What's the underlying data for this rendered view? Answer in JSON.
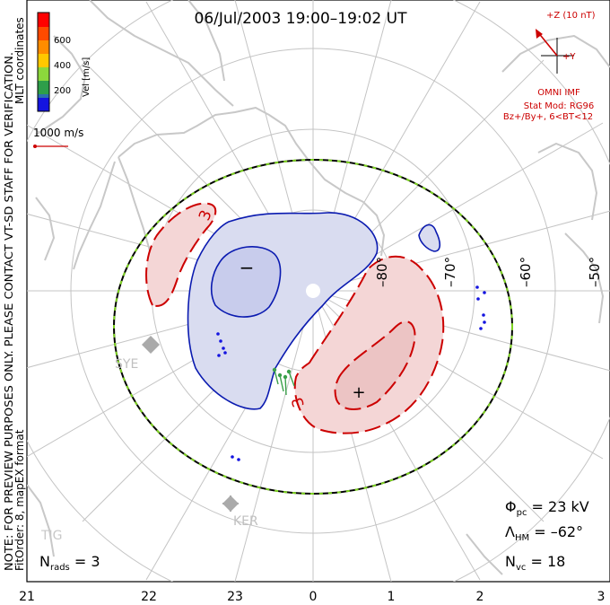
{
  "title": "06/Jul/2003 19:00–19:02 UT",
  "side_text": {
    "line1": "NOTE: FOR PREVIEW PURPOSES ONLY. PLEASE CONTACT VT-SD STAFF FOR VERIFICATION.",
    "line2": "FitOrder: 8, mapEX format"
  },
  "coords_label": "MLT coordinates",
  "colorbar": {
    "label": "Vel [m/s]",
    "ticks": [
      "600",
      "400",
      "200"
    ],
    "colors": [
      "#ff0000",
      "#ff6a00",
      "#ffb000",
      "#8cd73c",
      "#2e9e4a",
      "#2c6fb0",
      "#1414e0"
    ]
  },
  "vector_scale": "1000 m/s",
  "imf": {
    "z_label": "+Z (10 nT)",
    "y_label": "+Y",
    "source": "OMNI IMF",
    "stat_mod": "Stat Mod: RG96",
    "condition": "Bz+/By+, 6<BT<12"
  },
  "latitude_labels": [
    "–80°",
    "–70°",
    "–60°",
    "–50°"
  ],
  "mlt_labels": [
    "21",
    "22",
    "23",
    "0",
    "1",
    "2",
    "3"
  ],
  "contour_labels": [
    "3",
    "3"
  ],
  "polarity": {
    "neg": "−",
    "pos": "+"
  },
  "stations": [
    "SYE",
    "KER",
    "TIG"
  ],
  "stats": {
    "phi_pc": "23 kV",
    "lambda_hm": "–62°",
    "n_vc": "18",
    "n_rads": "3"
  },
  "colors": {
    "positive_contour": "#cc0000",
    "negative_contour": "#0a1ab0",
    "positive_fill": "#f4d6d6",
    "negative_fill": "#d9dcf0",
    "hmb_dash_1": "#000000",
    "hmb_dash_2": "#7ed321",
    "coastline": "#c8c8c8",
    "grid": "#c4c4c4",
    "vector": "#1414e0",
    "vector_green": "#3aa04a",
    "imf_red": "#cc0000"
  }
}
